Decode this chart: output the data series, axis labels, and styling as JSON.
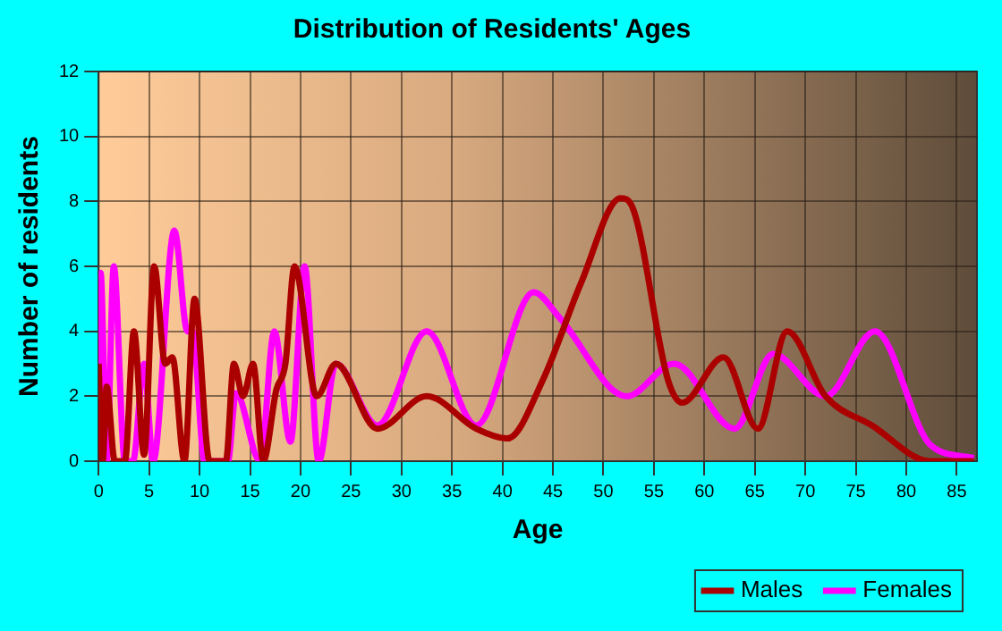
{
  "chart_data": {
    "type": "line",
    "title": "Distribution of Residents' Ages",
    "xlabel": "Age",
    "ylabel": "Number of residents",
    "xlim": [
      0,
      87
    ],
    "xticks": [
      0,
      5,
      10,
      15,
      20,
      25,
      30,
      35,
      40,
      45,
      50,
      55,
      60,
      65,
      70,
      75,
      80,
      85
    ],
    "ylim": [
      0,
      12
    ],
    "yticks": [
      0,
      2,
      4,
      6,
      8,
      10,
      12
    ],
    "grid": true,
    "legend": "bottom right",
    "marker": "none",
    "line_style": "solid",
    "series": [
      {
        "name": "Males",
        "color": "#aa0000",
        "x": [
          0,
          0.4,
          0.8,
          1.6,
          2.6,
          3.5,
          4.5,
          5.5,
          6.6,
          7.3,
          8.5,
          9.5,
          11,
          12.6,
          13.4,
          14.3,
          15.3,
          16.3,
          17.6,
          18.5,
          19.4,
          21.6,
          23.5,
          27.6,
          32.5,
          37.4,
          40.5,
          44,
          47.8,
          51.7,
          52.9,
          56.4,
          57.8,
          61.9,
          65.3,
          68.2,
          72,
          76.6,
          82.4,
          86.7
        ],
        "values": [
          3,
          0,
          2.3,
          0,
          0,
          4,
          0.2,
          6,
          3,
          3.2,
          0,
          5,
          0,
          0,
          3,
          2,
          3,
          0,
          2.2,
          3,
          6,
          2,
          3,
          1,
          2,
          1,
          0.7,
          2.5,
          5.5,
          8.1,
          7.8,
          2.5,
          1.8,
          3.2,
          1,
          4,
          2,
          1.1,
          0,
          0
        ]
      },
      {
        "name": "Females",
        "color": "#ff00ff",
        "x": [
          0,
          0.2,
          0.8,
          1.5,
          2.6,
          3.4,
          4.5,
          5.4,
          7.5,
          8.8,
          9.3,
          10.5,
          12.8,
          13.6,
          16,
          17.4,
          19,
          20.4,
          21.8,
          23.5,
          27.6,
          32.5,
          37.4,
          43.1,
          45.7,
          52.3,
          57,
          63,
          66.8,
          72,
          76.9,
          82.4,
          86.7
        ],
        "values": [
          3,
          5.8,
          0,
          6,
          0,
          0,
          3,
          0,
          7.1,
          4,
          4,
          0,
          0,
          2.1,
          0,
          4,
          0.6,
          6,
          0,
          3,
          1.1,
          4,
          1.1,
          5.2,
          4.4,
          2,
          3,
          1,
          3.3,
          2,
          4,
          0.5,
          0.1
        ]
      }
    ]
  }
}
